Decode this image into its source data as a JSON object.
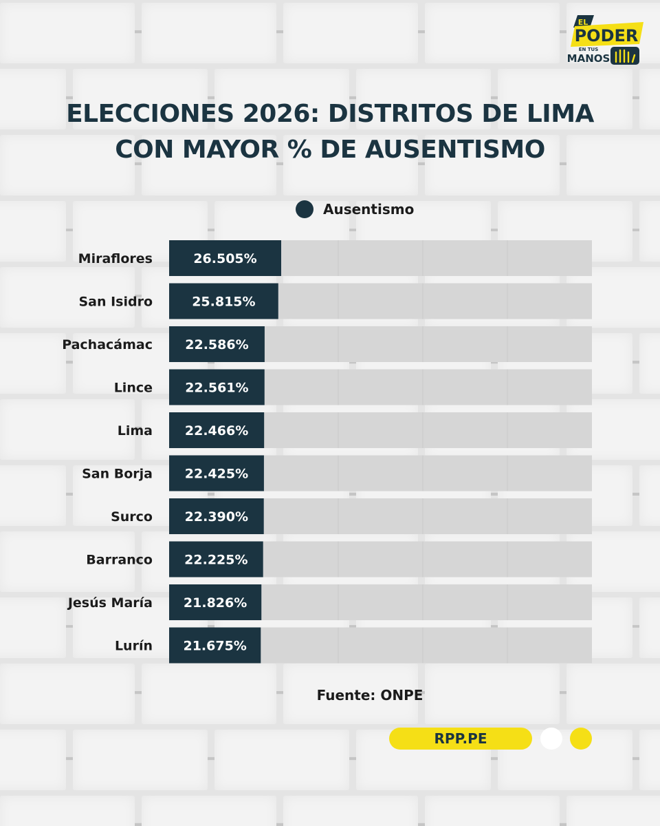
{
  "brand": {
    "logo_line1": "EL",
    "logo_line2": "PODER",
    "logo_line3": "EN TUS",
    "logo_line4": "MANOS",
    "site": "RPP.PE",
    "colors": {
      "navy": "#1b3441",
      "yellow": "#f5df16",
      "track": "#d6d6d6"
    }
  },
  "title_line1": "ELECCIONES 2026: DISTRITOS DE LIMA",
  "title_line2": "CON MAYOR % DE AUSENTISMO",
  "source": "Fuente: ONPE",
  "chart_data": {
    "type": "bar",
    "orientation": "horizontal",
    "title": "ELECCIONES 2026: DISTRITOS DE LIMA CON MAYOR % DE AUSENTISMO",
    "legend": {
      "position": "top",
      "entries": [
        "Ausentismo"
      ]
    },
    "categories": [
      "Miraflores",
      "San Isidro",
      "Pachacámac",
      "Lince",
      "Lima",
      "San Borja",
      "Surco",
      "Barranco",
      "Jesús María",
      "Lurín"
    ],
    "series": [
      {
        "name": "Ausentismo",
        "values": [
          26.505,
          25.815,
          22.586,
          22.561,
          22.466,
          22.425,
          22.39,
          22.225,
          21.826,
          21.675
        ],
        "labels": [
          "26.505%",
          "25.815%",
          "22.586%",
          "22.561%",
          "22.466%",
          "22.425%",
          "22.390%",
          "22.225%",
          "21.826%",
          "21.675%"
        ]
      }
    ],
    "xlim": [
      0,
      100
    ],
    "grid": true
  }
}
